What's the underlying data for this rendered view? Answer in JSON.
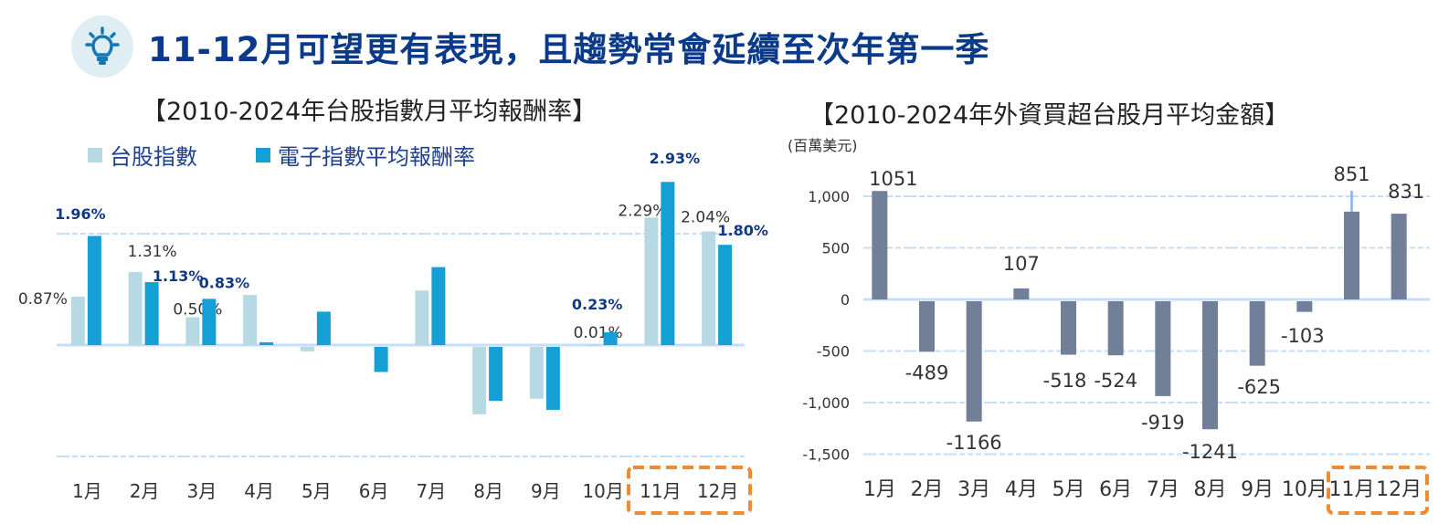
{
  "header": {
    "icon": "lightbulb-icon",
    "title": "11-12月可望更有表現，且趨勢常會延續至次年第一季"
  },
  "colors": {
    "taiex": "#b6d9e4",
    "electronics": "#14a0d4",
    "foreign": "#717f98",
    "gridline": "#c6ddf7",
    "highlight_box": "#f08a33",
    "bold_label": "#123a84",
    "title": "#0b3a8a"
  },
  "chart_data": [
    {
      "type": "bar",
      "title": "【2010-2024年台股指數月平均報酬率】",
      "xlabel": "",
      "ylabel": "",
      "categories": [
        "1月",
        "2月",
        "3月",
        "4月",
        "5月",
        "6月",
        "7月",
        "8月",
        "9月",
        "10月",
        "11月",
        "12月"
      ],
      "series": [
        {
          "name": "台股指數",
          "values": [
            0.87,
            1.31,
            0.5,
            0.9,
            -0.08,
            0.0,
            0.98,
            -1.21,
            -0.93,
            0.01,
            2.29,
            2.04
          ],
          "labels": [
            "0.87%",
            "1.31%",
            "0.50%",
            "",
            "",
            "",
            "",
            "",
            "",
            "0.01%",
            "2.29%",
            "2.04%"
          ]
        },
        {
          "name": "電子指數平均報酬率",
          "values": [
            1.96,
            1.13,
            0.83,
            0.05,
            0.6,
            -0.45,
            1.4,
            -0.97,
            -1.13,
            0.23,
            2.93,
            1.8
          ],
          "labels": [
            "1.96%",
            "1.13%",
            "0.83%",
            "",
            "",
            "",
            "",
            "",
            "",
            "0.23%",
            "2.93%",
            "1.80%"
          ]
        }
      ],
      "ylim": [
        -2,
        3
      ],
      "gridlines": [
        2,
        0,
        -2
      ],
      "grid": true,
      "legend": "top-left",
      "highlight_categories": [
        "11月",
        "12月"
      ]
    },
    {
      "type": "bar",
      "title": "【2010-2024年外資買超台股月平均金額】",
      "unit_label": "(百萬美元)",
      "xlabel": "",
      "ylabel": "(百萬美元)",
      "categories": [
        "1月",
        "2月",
        "3月",
        "4月",
        "5月",
        "6月",
        "7月",
        "8月",
        "9月",
        "10月",
        "11月",
        "12月"
      ],
      "series": [
        {
          "name": "外資買超",
          "values": [
            1051,
            -489,
            -1166,
            107,
            -518,
            -524,
            -919,
            -1241,
            -625,
            -103,
            851,
            831
          ]
        }
      ],
      "ylim": [
        -1500,
        1000
      ],
      "yticks": [
        1000,
        500,
        0,
        -500,
        -1000,
        -1500
      ],
      "ytick_labels": [
        "1,000",
        "500",
        "0",
        "-500",
        "-1,000",
        "-1,500"
      ],
      "grid": true,
      "legend": "none",
      "highlight_categories": [
        "11月",
        "12月"
      ]
    }
  ]
}
